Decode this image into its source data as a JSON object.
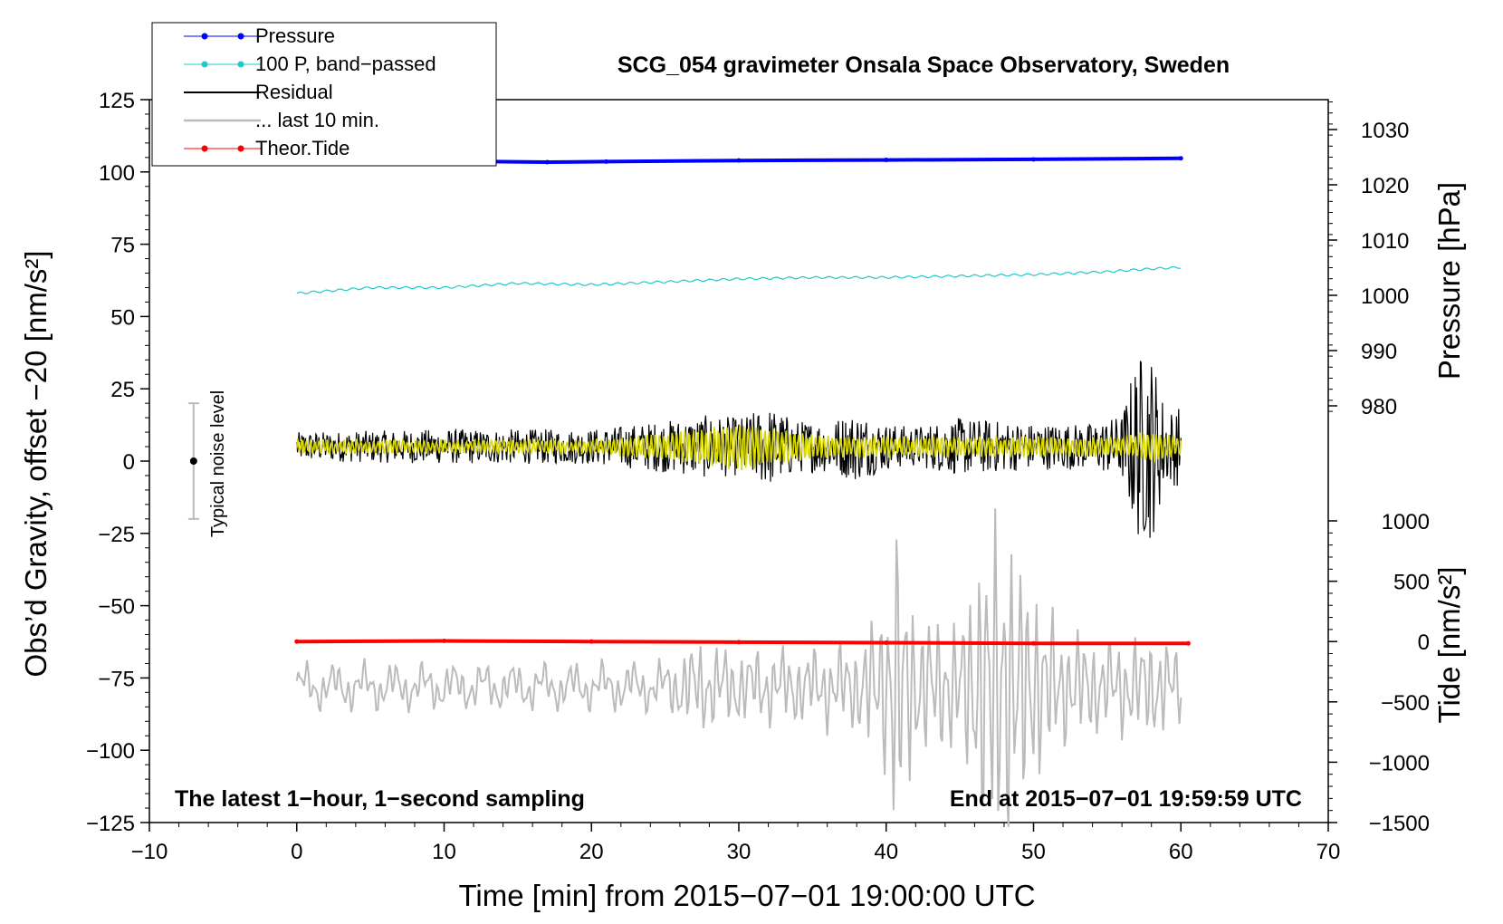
{
  "chart_data": {
    "type": "line",
    "title": "SCG_054 gravimeter Onsala Space Observatory, Sweden",
    "xlabel": "Time [min] from 2015−07−01 19:00:00 UTC",
    "ylabel_left": "Obs’d Gravity, offset −20 [nm/s²]",
    "ylabel_right_pressure": "Pressure [hPa]",
    "ylabel_right_tide": "Tide [nm/s²]",
    "xlim": [
      -10,
      70
    ],
    "ylim_left": [
      -125,
      125
    ],
    "pressure_range": [
      975,
      1035
    ],
    "tide_range": [
      -1500,
      1000
    ],
    "x_ticks": [
      "−10",
      "0",
      "10",
      "20",
      "30",
      "40",
      "50",
      "60",
      "70"
    ],
    "y_left_ticks": [
      "125",
      "100",
      "75",
      "50",
      "25",
      "0",
      "−25",
      "−50",
      "−75",
      "−100",
      "−125"
    ],
    "pressure_ticks": [
      "1030",
      "1020",
      "1010",
      "1000",
      "990",
      "980"
    ],
    "tide_ticks": [
      "1000",
      "500",
      "0",
      "−500",
      "−1000",
      "−1500"
    ],
    "annotations": {
      "bottom_left": "The latest 1−hour, 1−second sampling",
      "bottom_right": "End at 2015−07−01 19:59:59 UTC",
      "noise": "Typical noise level"
    },
    "noise_bar": {
      "x": -7,
      "center": 0,
      "half_range": 20
    },
    "legend": {
      "placement": "top-left",
      "entries": [
        {
          "label": "Pressure",
          "color": "#0000ff",
          "marker": true
        },
        {
          "label": "100 P, band−passed",
          "color": "#20c8c8",
          "marker": true
        },
        {
          "label": "Residual",
          "color": "#000000",
          "marker": false
        },
        {
          "label": "... last 10 min.",
          "color": "#bbbbbb",
          "marker": false
        },
        {
          "label": "Theor.Tide",
          "color": "#ff0000",
          "marker": true
        }
      ]
    },
    "series": [
      {
        "name": "Pressure",
        "axis": "pressure",
        "color": "#0000ff",
        "x": [
          0,
          10,
          17,
          21,
          30,
          40,
          50,
          60
        ],
        "y": [
          1024.3,
          1024.3,
          1024.1,
          1024.2,
          1024.4,
          1024.5,
          1024.6,
          1024.8
        ]
      },
      {
        "name": "100 P, band−passed",
        "axis": "left",
        "color": "#20c8c8",
        "x": [
          0,
          5,
          10,
          15,
          20,
          25,
          30,
          35,
          40,
          45,
          50,
          55,
          58,
          60
        ],
        "y": [
          58,
          60,
          60,
          61.5,
          61,
          62,
          63,
          63.5,
          63.5,
          64,
          64.5,
          65.5,
          66.5,
          67
        ]
      },
      {
        "name": "Residual",
        "axis": "left",
        "color": "#000000",
        "x_range": [
          0,
          60
        ],
        "envelope_x": [
          0,
          10,
          20,
          25,
          28,
          30,
          32,
          34,
          36,
          38,
          40,
          42,
          45,
          50,
          54,
          56,
          57,
          58,
          59,
          60
        ],
        "envelope_amp": [
          5,
          6,
          6,
          9,
          11,
          10,
          14,
          9,
          9,
          12,
          8,
          7,
          10,
          8,
          8,
          11,
          32,
          33,
          13,
          14
        ],
        "center": 5
      },
      {
        "name": "Residual smoothed",
        "axis": "left",
        "color": "#d8d800",
        "x_range": [
          0,
          60
        ],
        "envelope_x": [
          0,
          20,
          28,
          30,
          32,
          35,
          40,
          50,
          56,
          58,
          60
        ],
        "envelope_amp": [
          2,
          2,
          6,
          8,
          6,
          4,
          3,
          3,
          3,
          5,
          3
        ],
        "center": 5
      },
      {
        "name": "Theor.Tide",
        "axis": "tide",
        "color": "#ff0000",
        "x": [
          0,
          10,
          20,
          30,
          40,
          50,
          60.5
        ],
        "y": [
          0,
          5,
          0,
          -5,
          -10,
          -15,
          -15
        ]
      },
      {
        "name": "... last 10 min.",
        "axis": "left",
        "color": "#bbbbbb",
        "x_range": [
          0,
          60
        ],
        "envelope_x": [
          0,
          10,
          20,
          25,
          27,
          30,
          35,
          38,
          40,
          40.5,
          42,
          45,
          47,
          48,
          50,
          52,
          55,
          58,
          60
        ],
        "envelope_amp": [
          6,
          6,
          6,
          7,
          15,
          12,
          12,
          15,
          30,
          60,
          25,
          22,
          60,
          58,
          35,
          20,
          15,
          18,
          12
        ],
        "center": -78
      }
    ]
  }
}
